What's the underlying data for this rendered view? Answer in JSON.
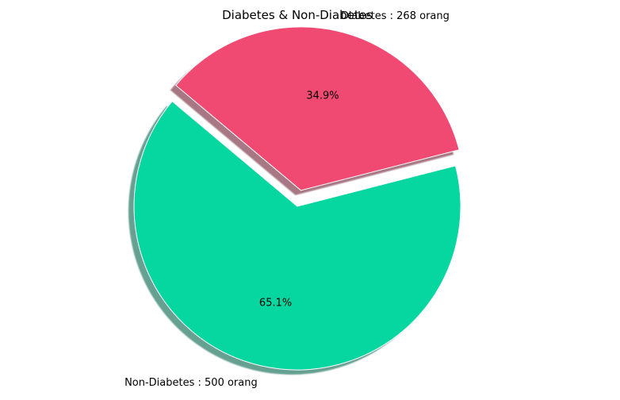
{
  "chart_data": {
    "type": "pie",
    "title": "Diabetes & Non-Diabetes",
    "slices": [
      {
        "label": "Non-Diabetes : 500 orang",
        "value": 500,
        "pct_label": "65.1%",
        "color": "#06d6a0",
        "explode": 0
      },
      {
        "label": "Diabetes : 268 orang",
        "value": 268,
        "pct_label": "34.9%",
        "color": "#f14a72",
        "explode": 0.1
      }
    ],
    "shadow": true
  }
}
